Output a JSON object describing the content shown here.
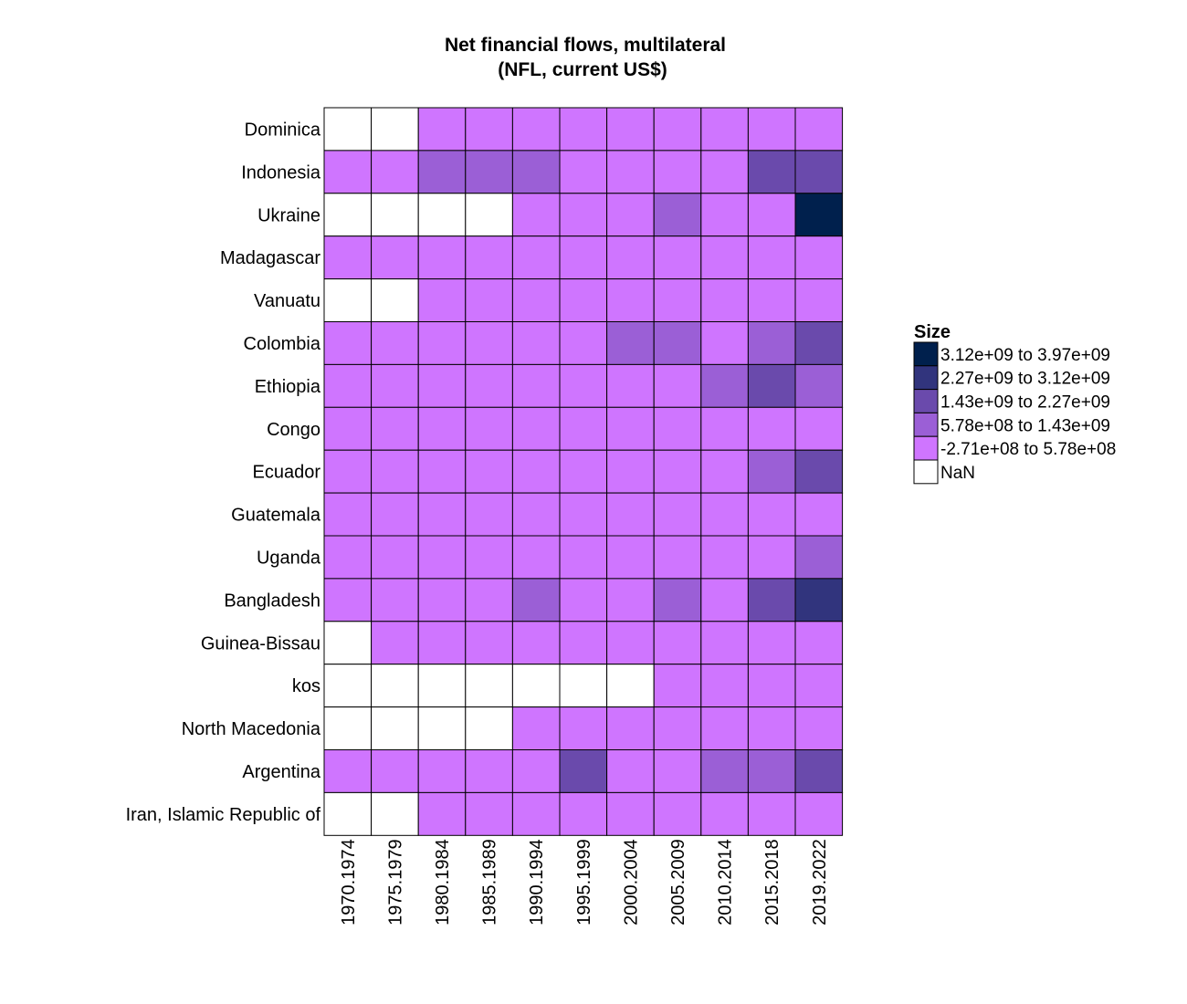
{
  "chart_data": {
    "type": "heatmap",
    "title": "Net financial flows, multilateral",
    "subtitle": "(NFL, current US$)",
    "columns": [
      "1970.1974",
      "1975.1979",
      "1980.1984",
      "1985.1989",
      "1990.1994",
      "1995.1999",
      "2000.2004",
      "2005.2009",
      "2010.2014",
      "2015.2018",
      "2019.2022"
    ],
    "rows": [
      "Dominica",
      "Indonesia",
      "Ukraine",
      "Madagascar",
      "Vanuatu",
      "Colombia",
      "Ethiopia",
      "Congo",
      "Ecuador",
      "Guatemala",
      "Uganda",
      "Bangladesh",
      "Guinea-Bissau",
      "kos",
      "North Macedonia",
      "Argentina",
      "Iran, Islamic Republic of"
    ],
    "bins": [
      {
        "label": "3.12e+09 to 3.97e+09",
        "color": "#00204d"
      },
      {
        "label": "2.27e+09 to 3.12e+09",
        "color": "#31347d"
      },
      {
        "label": "1.43e+09 to 2.27e+09",
        "color": "#6a4aac"
      },
      {
        "label": "5.78e+08 to 1.43e+09",
        "color": "#9b5fd6"
      },
      {
        "label": "-2.71e+08 to 5.78e+08",
        "color": "#cf75ff"
      },
      {
        "label": "NaN",
        "color": "#ffffff"
      }
    ],
    "cells_bin_index": [
      [
        5,
        5,
        4,
        4,
        4,
        4,
        4,
        4,
        4,
        4,
        4
      ],
      [
        4,
        4,
        3,
        3,
        3,
        4,
        4,
        4,
        4,
        2,
        2
      ],
      [
        5,
        5,
        5,
        5,
        4,
        4,
        4,
        3,
        4,
        4,
        0
      ],
      [
        4,
        4,
        4,
        4,
        4,
        4,
        4,
        4,
        4,
        4,
        4
      ],
      [
        5,
        5,
        4,
        4,
        4,
        4,
        4,
        4,
        4,
        4,
        4
      ],
      [
        4,
        4,
        4,
        4,
        4,
        4,
        3,
        3,
        4,
        3,
        2
      ],
      [
        4,
        4,
        4,
        4,
        4,
        4,
        4,
        4,
        3,
        2,
        3
      ],
      [
        4,
        4,
        4,
        4,
        4,
        4,
        4,
        4,
        4,
        4,
        4
      ],
      [
        4,
        4,
        4,
        4,
        4,
        4,
        4,
        4,
        4,
        3,
        2
      ],
      [
        4,
        4,
        4,
        4,
        4,
        4,
        4,
        4,
        4,
        4,
        4
      ],
      [
        4,
        4,
        4,
        4,
        4,
        4,
        4,
        4,
        4,
        4,
        3
      ],
      [
        4,
        4,
        4,
        4,
        3,
        4,
        4,
        3,
        4,
        2,
        1
      ],
      [
        5,
        4,
        4,
        4,
        4,
        4,
        4,
        4,
        4,
        4,
        4
      ],
      [
        5,
        5,
        5,
        5,
        5,
        5,
        5,
        4,
        4,
        4,
        4
      ],
      [
        5,
        5,
        5,
        5,
        4,
        4,
        4,
        4,
        4,
        4,
        4
      ],
      [
        4,
        4,
        4,
        4,
        4,
        2,
        4,
        4,
        3,
        3,
        2
      ],
      [
        5,
        5,
        4,
        4,
        4,
        4,
        4,
        4,
        4,
        4,
        4
      ]
    ],
    "legend": {
      "title": "Size",
      "position": "right"
    },
    "grid": false
  }
}
